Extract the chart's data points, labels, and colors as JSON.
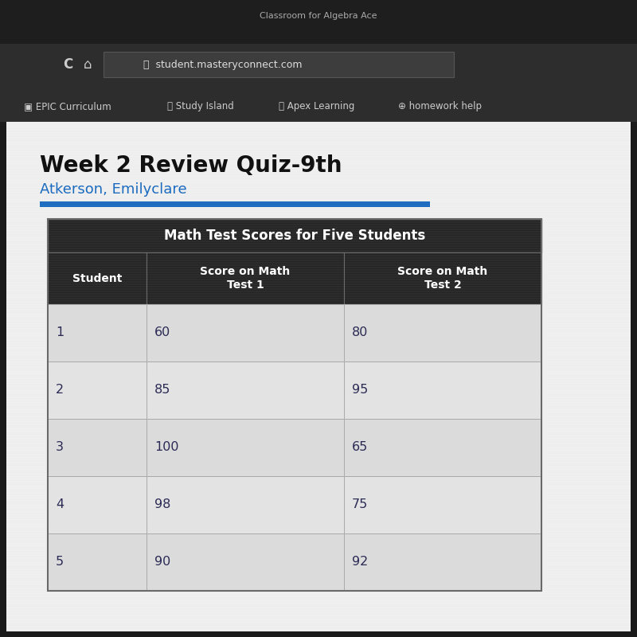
{
  "page_title": "Week 2 Review Quiz-9th",
  "subtitle": "Atkerson, Emilyclare",
  "table_title": "Math Test Scores for Five Students",
  "col_headers": [
    "Student",
    "Score on Math\nTest 1",
    "Score on Math\nTest 2"
  ],
  "rows": [
    [
      "1",
      "60",
      "80"
    ],
    [
      "2",
      "85",
      "95"
    ],
    [
      "3",
      "100",
      "65"
    ],
    [
      "4",
      "98",
      "75"
    ],
    [
      "5",
      "90",
      "92"
    ]
  ],
  "header_bg": "#252525",
  "header_text": "#ffffff",
  "data_row_bg": "#e8e8e8",
  "cell_text": "#2a2a55",
  "border_color": "#999999",
  "title_bar_color": "#1a6abf",
  "page_bg": "#f0f0f0",
  "browser_chrome_bg": "#2d2d2d",
  "browser_url_bg": "#3a3a3a",
  "outer_bg": "#1a1a1a",
  "url_text": "student.masteryconnect.com",
  "bookmark_bar": "EPIC Curriculum    Study Island    Apex Learning    homework help",
  "page_title_color": "#111111",
  "subtitle_color": "#1a6abf"
}
